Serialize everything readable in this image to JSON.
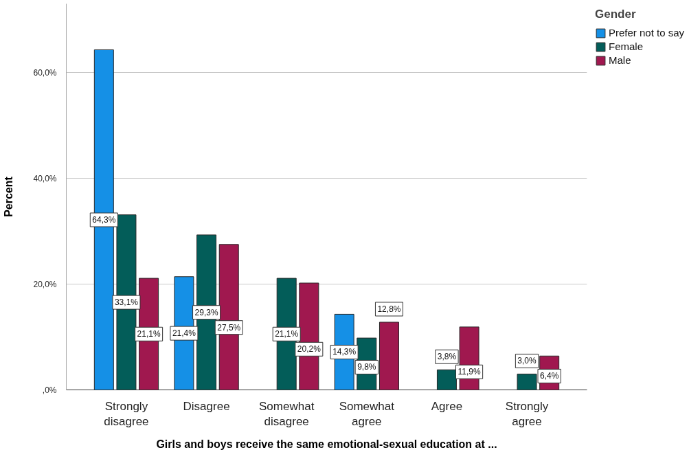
{
  "chart_data": {
    "type": "bar",
    "xlabel": "Girls and boys receive the same emotional-sexual education at ...",
    "ylabel": "Percent",
    "legend_title": "Gender",
    "categories": [
      "Strongly disagree",
      "Disagree",
      "Somewhat disagree",
      "Somewhat agree",
      "Agree",
      "Strongly agree"
    ],
    "series": [
      {
        "name": "Prefer not to say",
        "color": "#1590e6",
        "values": [
          64.3,
          21.4,
          0,
          14.3,
          0,
          0
        ],
        "value_labels": [
          "64,3%",
          "21,4%",
          null,
          "14,3%",
          null,
          null
        ]
      },
      {
        "name": "Female",
        "color": "#035d59",
        "values": [
          33.1,
          29.3,
          21.1,
          9.8,
          3.8,
          3.0
        ],
        "value_labels": [
          "33,1%",
          "29,3%",
          "21,1%",
          "9,8%",
          "3,8%",
          "3,0%"
        ]
      },
      {
        "name": "Male",
        "color": "#a0184f",
        "values": [
          21.1,
          27.5,
          20.2,
          12.8,
          11.9,
          6.4
        ],
        "value_labels": [
          "21,1%",
          "27,5%",
          "20,2%",
          "12,8%",
          "11,9%",
          "6,4%"
        ]
      }
    ],
    "ylim": [
      0,
      73
    ],
    "yticks": [
      {
        "value": 0,
        "label": ",0%"
      },
      {
        "value": 20,
        "label": "20,0%"
      },
      {
        "value": 40,
        "label": "40,0%"
      },
      {
        "value": 60,
        "label": "60,0%"
      }
    ],
    "grid": "y",
    "legend": "top right"
  }
}
